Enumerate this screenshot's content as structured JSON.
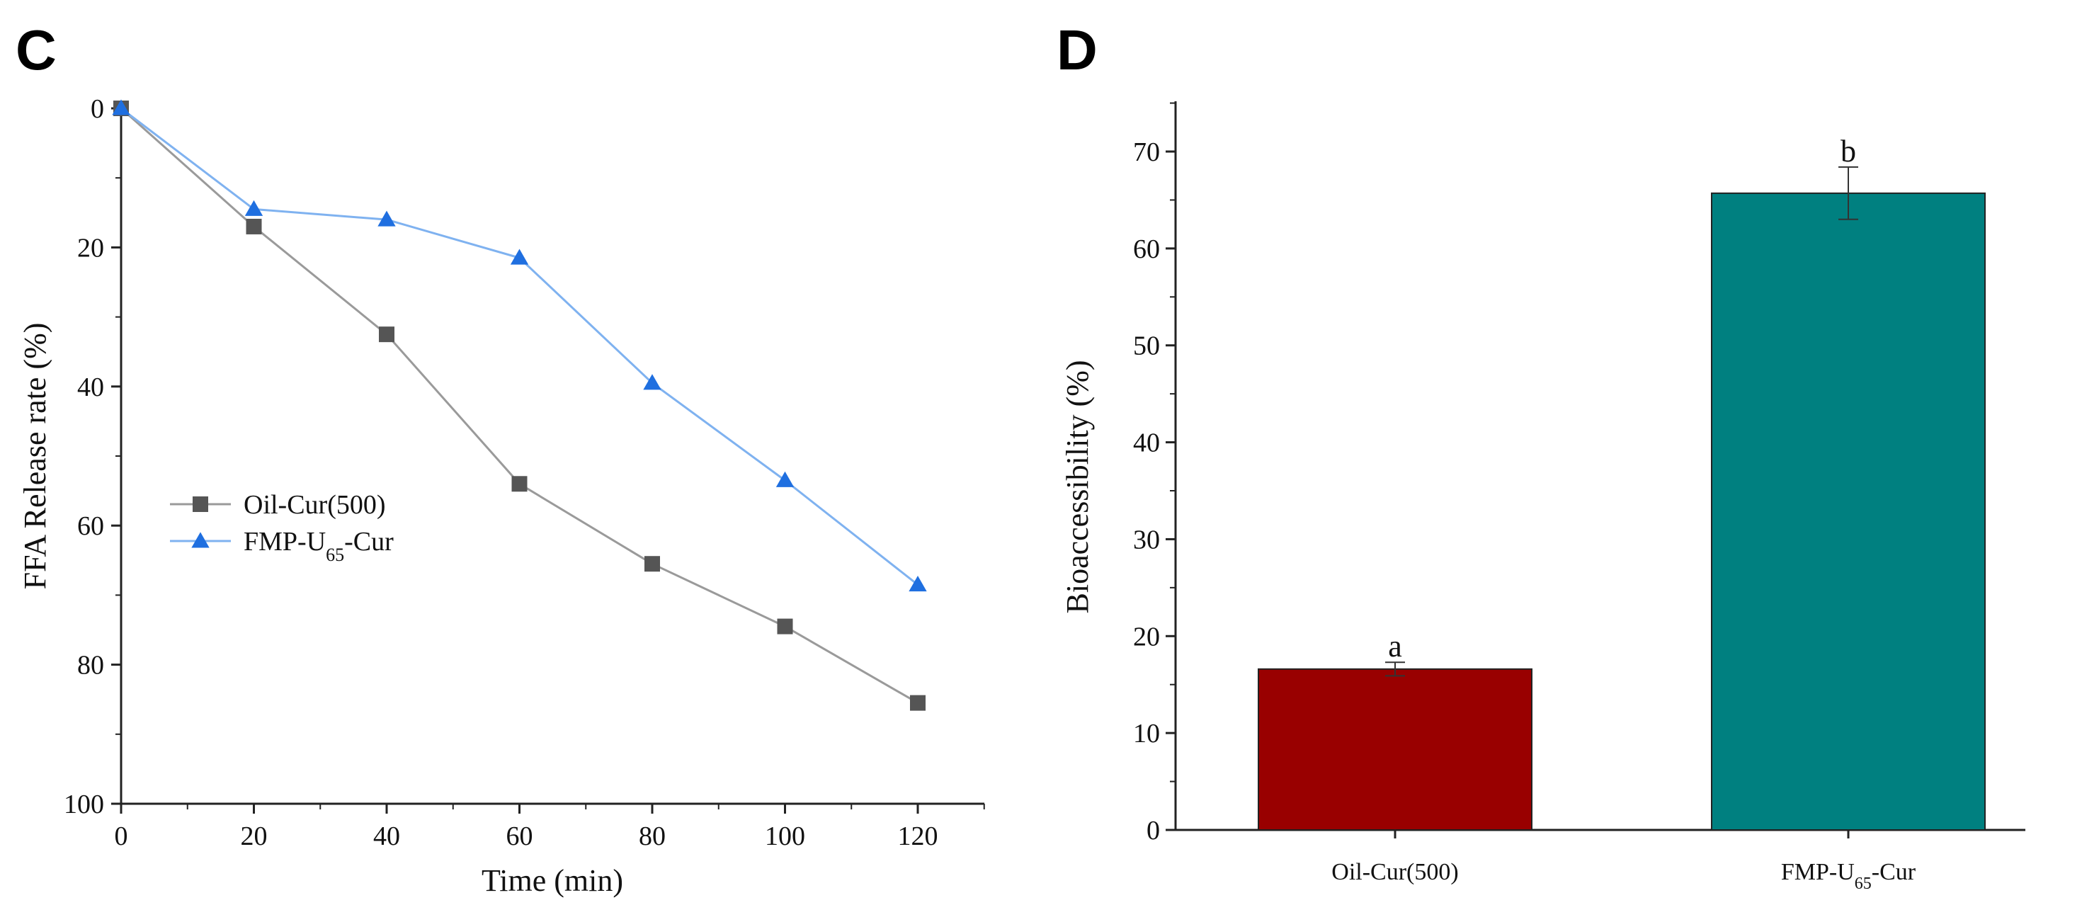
{
  "colors": {
    "series_oil": "#555555",
    "series_oil_line": "#9a9a9a",
    "series_fmp": "#1f6fe0",
    "series_fmp_line": "#7fb2f0",
    "bar_oil": "#990000",
    "bar_fmp": "#008080",
    "axis": "#222222"
  },
  "panels": {
    "left_label": "C",
    "right_label": "D"
  },
  "chart_data": [
    {
      "id": "C",
      "type": "line",
      "title": "",
      "xlabel": "Time (min)",
      "ylabel": "FFA Release rate (%)",
      "x": [
        0,
        20,
        40,
        60,
        80,
        100,
        120
      ],
      "xlim": [
        0,
        130
      ],
      "ylim": [
        0,
        100
      ],
      "y_inverted": true,
      "xticks": [
        0,
        20,
        40,
        60,
        80,
        100,
        120
      ],
      "yticks": [
        0,
        20,
        40,
        60,
        80,
        100
      ],
      "series": [
        {
          "name": "Oil-Cur(500)",
          "marker": "square",
          "values": [
            0,
            17,
            32.5,
            54,
            65.5,
            74.5,
            85.5
          ]
        },
        {
          "name": "FMP-U65-Cur",
          "name_base": "FMP-U",
          "name_sub": "65",
          "name_suffix": "-Cur",
          "marker": "triangle",
          "values": [
            0,
            14.5,
            16,
            21.5,
            39.5,
            53.5,
            68.5
          ]
        }
      ],
      "legend_position": "center-left",
      "grid": false
    },
    {
      "id": "D",
      "type": "bar",
      "title": "",
      "xlabel": "",
      "ylabel": "Bioaccessibility (%)",
      "categories": [
        "Oil-Cur(500)",
        "FMP-U65-Cur"
      ],
      "category_parts": [
        {
          "base": "Oil-Cur(500)",
          "sub": "",
          "suffix": ""
        },
        {
          "base": "FMP-U",
          "sub": "65",
          "suffix": "-Cur"
        }
      ],
      "values": [
        16.6,
        65.7
      ],
      "errors": [
        0.7,
        2.7
      ],
      "significance": [
        "a",
        "b"
      ],
      "ylim": [
        0,
        75
      ],
      "yticks": [
        0,
        10,
        20,
        30,
        40,
        50,
        60,
        70
      ],
      "grid": false
    }
  ]
}
